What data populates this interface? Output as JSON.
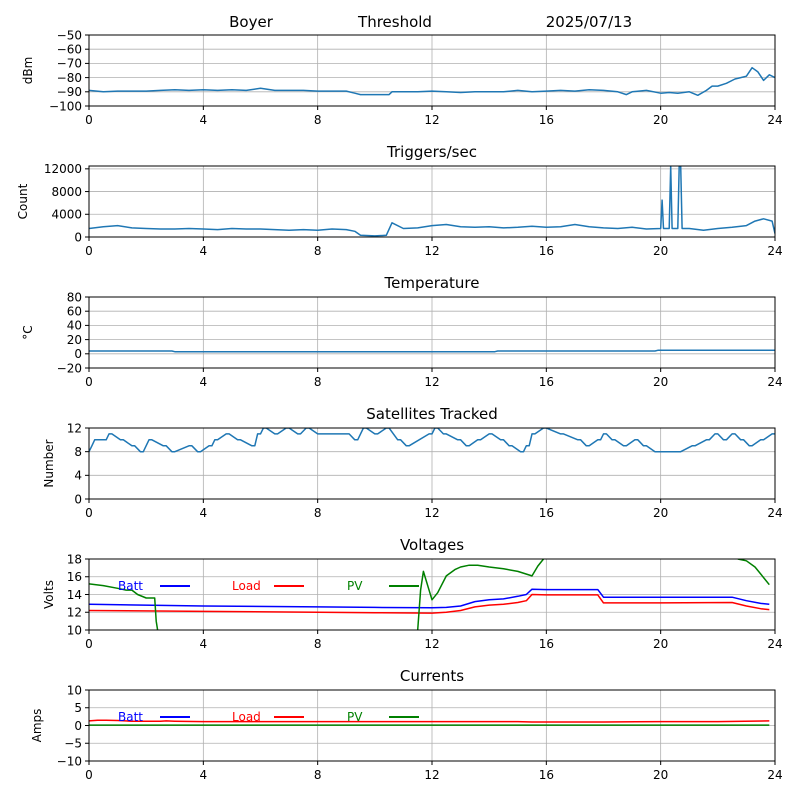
{
  "header": {
    "station": "Boyer",
    "mode": "Threshold",
    "date": "2025/07/13"
  },
  "colors": {
    "series": "#1f77b4",
    "batt": "#0000ff",
    "load": "#ff0000",
    "pv": "#008000",
    "grid": "#b0b0b0",
    "axis": "#000000"
  },
  "chart_data": [
    {
      "type": "line",
      "title": "",
      "ylabel": "dBm",
      "xlim": [
        0,
        24
      ],
      "xticks": [
        0,
        4,
        8,
        12,
        16,
        20,
        24
      ],
      "ylim": [
        -100,
        -50
      ],
      "yticks": [
        -100,
        -90,
        -80,
        -70,
        -60,
        -50
      ],
      "grid": true,
      "series": [
        {
          "color": "#1f77b4",
          "x": [
            0,
            0.5,
            1,
            1.5,
            2,
            2.5,
            3,
            3.5,
            4,
            4.5,
            5,
            5.5,
            6,
            6.5,
            7,
            7.5,
            8,
            8.5,
            9,
            9.3,
            9.5,
            10,
            10.5,
            10.6,
            11,
            11.5,
            12,
            12.5,
            13,
            13.5,
            14,
            14.5,
            15,
            15.5,
            16,
            16.5,
            17,
            17.5,
            18,
            18.5,
            18.8,
            19,
            19.5,
            20,
            20.3,
            20.6,
            21,
            21.3,
            21.6,
            21.8,
            22,
            22.3,
            22.6,
            22.8,
            23,
            23.2,
            23.4,
            23.6,
            23.8,
            24
          ],
          "y": [
            -89,
            -90,
            -89.5,
            -89.5,
            -89.5,
            -89,
            -88.5,
            -89,
            -88.5,
            -89,
            -88.5,
            -89,
            -87.5,
            -89,
            -89,
            -89,
            -89.5,
            -89.5,
            -89.5,
            -91,
            -92,
            -92,
            -92,
            -90,
            -90,
            -90,
            -89.5,
            -90,
            -90.5,
            -90,
            -90,
            -90,
            -89,
            -90,
            -89.5,
            -89,
            -89.5,
            -88.5,
            -89,
            -90,
            -92,
            -90,
            -89,
            -91,
            -90.5,
            -91,
            -90,
            -92.5,
            -89,
            -86,
            -86,
            -84,
            -81,
            -80,
            -79,
            -73,
            -76,
            -82,
            -78,
            -80
          ]
        }
      ]
    },
    {
      "type": "line",
      "title": "Triggers/sec",
      "ylabel": "Count",
      "xlim": [
        0,
        24
      ],
      "xticks": [
        0,
        4,
        8,
        12,
        16,
        20,
        24
      ],
      "ylim": [
        0,
        12500
      ],
      "yticks": [
        0,
        4000,
        8000,
        12000
      ],
      "grid": true,
      "series": [
        {
          "color": "#1f77b4",
          "x": [
            0,
            0.5,
            1,
            1.5,
            2,
            2.5,
            3,
            3.5,
            4,
            4.5,
            5,
            5.5,
            6,
            6.5,
            7,
            7.5,
            8,
            8.5,
            9,
            9.3,
            9.5,
            10,
            10.4,
            10.6,
            11,
            11.5,
            12,
            12.5,
            13,
            13.5,
            14,
            14.5,
            15,
            15.5,
            16,
            16.5,
            17,
            17.5,
            18,
            18.5,
            19,
            19.5,
            20,
            20.05,
            20.1,
            20.3,
            20.35,
            20.4,
            20.45,
            20.6,
            20.65,
            20.7,
            20.75,
            21,
            21.5,
            22,
            22.5,
            23,
            23.3,
            23.6,
            23.9,
            24
          ],
          "y": [
            1500,
            1800,
            2000,
            1600,
            1500,
            1400,
            1400,
            1500,
            1400,
            1300,
            1500,
            1400,
            1400,
            1300,
            1200,
            1300,
            1200,
            1400,
            1300,
            1000,
            300,
            200,
            300,
            2500,
            1500,
            1600,
            2000,
            2200,
            1800,
            1700,
            1800,
            1600,
            1700,
            1900,
            1700,
            1800,
            2200,
            1800,
            1600,
            1500,
            1700,
            1400,
            1500,
            6500,
            1500,
            1500,
            12500,
            1500,
            1500,
            1500,
            12500,
            12500,
            1500,
            1500,
            1200,
            1500,
            1700,
            2000,
            2800,
            3200,
            2800,
            600
          ]
        }
      ]
    },
    {
      "type": "line",
      "title": "Temperature",
      "ylabel": "°C",
      "xlim": [
        0,
        24
      ],
      "xticks": [
        0,
        4,
        8,
        12,
        16,
        20,
        24
      ],
      "ylim": [
        -20,
        80
      ],
      "yticks": [
        -20,
        0,
        20,
        40,
        60,
        80
      ],
      "grid": true,
      "series": [
        {
          "color": "#1f77b4",
          "x": [
            0,
            2.9,
            3,
            14.2,
            14.3,
            19.8,
            19.9,
            24
          ],
          "y": [
            4,
            4,
            3,
            3,
            4,
            4,
            5,
            5
          ]
        }
      ]
    },
    {
      "type": "line",
      "title": "Satellites Tracked",
      "ylabel": "Number",
      "xlim": [
        0,
        24
      ],
      "xticks": [
        0,
        4,
        8,
        12,
        16,
        20,
        24
      ],
      "ylim": [
        0,
        12
      ],
      "yticks": [
        0,
        4,
        8,
        12
      ],
      "grid": true,
      "series": [
        {
          "color": "#1f77b4",
          "x": [
            0,
            0.1,
            0.2,
            0.6,
            0.7,
            0.8,
            1.1,
            1.2,
            1.5,
            1.6,
            1.8,
            1.9,
            2.1,
            2.2,
            2.6,
            2.7,
            2.9,
            3,
            3.5,
            3.6,
            3.8,
            3.9,
            4.2,
            4.3,
            4.4,
            4.5,
            4.8,
            4.9,
            5.2,
            5.3,
            5.7,
            5.8,
            5.9,
            6,
            6.1,
            6.2,
            6.5,
            6.6,
            6.9,
            7,
            7.3,
            7.4,
            7.6,
            7.7,
            8,
            8.1,
            9,
            9.1,
            9.3,
            9.4,
            9.6,
            9.7,
            10,
            10.1,
            10.4,
            10.5,
            10.8,
            10.9,
            11.1,
            11.2,
            11.9,
            12,
            12.1,
            12.2,
            12.4,
            12.5,
            12.9,
            13,
            13.2,
            13.3,
            13.6,
            13.7,
            14,
            14.1,
            14.4,
            14.5,
            14.7,
            14.8,
            15.1,
            15.2,
            15.3,
            15.4,
            15.5,
            15.6,
            15.9,
            16,
            16.5,
            16.6,
            17.1,
            17.2,
            17.4,
            17.5,
            17.8,
            17.9,
            18,
            18.1,
            18.3,
            18.4,
            18.7,
            18.8,
            19.1,
            19.2,
            19.4,
            19.5,
            19.8,
            19.9,
            20.6,
            20.7,
            21.1,
            21.2,
            21.6,
            21.7,
            21.9,
            22,
            22.2,
            22.3,
            22.5,
            22.6,
            22.8,
            22.9,
            23.1,
            23.2,
            23.5,
            23.6,
            23.9,
            24
          ],
          "y": [
            8,
            9,
            10,
            10,
            11,
            11,
            10,
            10,
            9,
            9,
            8,
            8,
            10,
            10,
            9,
            9,
            8,
            8,
            9,
            9,
            8,
            8,
            9,
            9,
            10,
            10,
            11,
            11,
            10,
            10,
            9,
            9,
            11,
            11,
            12,
            12,
            11,
            11,
            12,
            12,
            11,
            11,
            12,
            12,
            11,
            11,
            11,
            11,
            10,
            10,
            12,
            12,
            11,
            11,
            12,
            12,
            10,
            10,
            9,
            9,
            11,
            11,
            12,
            12,
            11,
            11,
            10,
            10,
            9,
            9,
            10,
            10,
            11,
            11,
            10,
            10,
            9,
            9,
            8,
            8,
            9,
            9,
            11,
            11,
            12,
            12,
            11,
            11,
            10,
            10,
            9,
            9,
            10,
            10,
            11,
            11,
            10,
            10,
            9,
            9,
            10,
            10,
            9,
            9,
            8,
            8,
            8,
            8,
            9,
            9,
            10,
            10,
            11,
            11,
            10,
            10,
            11,
            11,
            10,
            10,
            9,
            9,
            10,
            10,
            11,
            11
          ]
        }
      ]
    },
    {
      "type": "line",
      "title": "Voltages",
      "ylabel": "Volts",
      "xlim": [
        0,
        24
      ],
      "xticks": [
        0,
        4,
        8,
        12,
        16,
        20,
        24
      ],
      "ylim": [
        10,
        18
      ],
      "yticks": [
        10,
        12,
        14,
        16,
        18
      ],
      "grid": true,
      "legend": {
        "items": [
          "Batt",
          "Load",
          "PV"
        ]
      },
      "series": [
        {
          "name": "Batt",
          "color": "#0000ff",
          "x": [
            0,
            4,
            8,
            10,
            12,
            12.5,
            13,
            13.5,
            14,
            14.5,
            15,
            15.3,
            15.5,
            16,
            17,
            17.8,
            18,
            20,
            22.5,
            23,
            23.5,
            23.8
          ],
          "y": [
            12.9,
            12.7,
            12.6,
            12.55,
            12.5,
            12.55,
            12.7,
            13.2,
            13.4,
            13.5,
            13.8,
            14,
            14.6,
            14.55,
            14.55,
            14.55,
            13.7,
            13.7,
            13.7,
            13.3,
            13,
            12.9
          ]
        },
        {
          "name": "Load",
          "color": "#ff0000",
          "x": [
            0,
            4,
            8,
            10,
            12,
            12.5,
            13,
            13.5,
            14,
            14.5,
            15,
            15.3,
            15.5,
            16,
            17,
            17.8,
            18,
            20,
            22.5,
            23,
            23.5,
            23.8
          ],
          "y": [
            12.2,
            12.1,
            12,
            11.95,
            11.9,
            12,
            12.2,
            12.6,
            12.8,
            12.9,
            13.1,
            13.3,
            14,
            13.95,
            13.95,
            13.95,
            13.05,
            13.05,
            13.1,
            12.7,
            12.4,
            12.3
          ]
        },
        {
          "name": "PV",
          "color": "#008000",
          "x": [
            0,
            0.5,
            1,
            1.3,
            1.5,
            1.7,
            2,
            2.2,
            2.3,
            2.35,
            2.4
          ],
          "y": [
            15.2,
            15,
            14.7,
            14.5,
            14.5,
            14,
            13.6,
            13.6,
            13.6,
            11,
            10
          ]
        },
        {
          "name": "PV",
          "color": "#008000",
          "x": [
            11.5,
            11.6,
            11.7,
            12,
            12.2,
            12.5,
            12.8,
            13,
            13.3,
            13.6,
            14,
            14.5,
            15,
            15.5,
            15.7,
            15.9
          ],
          "y": [
            10,
            14.5,
            16.6,
            13.4,
            14.2,
            16.1,
            16.8,
            17.1,
            17.3,
            17.3,
            17.1,
            16.9,
            16.6,
            16.1,
            17.2,
            18
          ]
        },
        {
          "name": "PV",
          "color": "#008000",
          "x": [
            22.7,
            23,
            23.3,
            23.6,
            23.8
          ],
          "y": [
            18,
            17.8,
            17.1,
            15.9,
            15.1
          ]
        }
      ]
    },
    {
      "type": "line",
      "title": "Currents",
      "ylabel": "Amps",
      "xlim": [
        0,
        24
      ],
      "xticks": [
        0,
        4,
        8,
        12,
        16,
        20,
        24
      ],
      "ylim": [
        -10,
        10
      ],
      "yticks": [
        -10,
        -5,
        0,
        5,
        10
      ],
      "grid": true,
      "legend": {
        "items": [
          "Batt",
          "Load",
          "PV"
        ]
      },
      "series": [
        {
          "name": "Load",
          "color": "#ff0000",
          "x": [
            0,
            0.3,
            0.6,
            1,
            1.5,
            2,
            2.5,
            2.7,
            3,
            4,
            8,
            12,
            15,
            15.5,
            16,
            18,
            20,
            21.5,
            22,
            23.8
          ],
          "y": [
            1.3,
            1.5,
            1.5,
            1.4,
            1.2,
            1.2,
            1.2,
            1.3,
            1.2,
            1.1,
            1.1,
            1.1,
            1.1,
            1.0,
            1.0,
            1.0,
            1.1,
            1.1,
            1.1,
            1.3
          ]
        },
        {
          "name": "PV",
          "color": "#008000",
          "x": [
            0,
            23.8
          ],
          "y": [
            0.1,
            0.1
          ]
        }
      ]
    }
  ]
}
